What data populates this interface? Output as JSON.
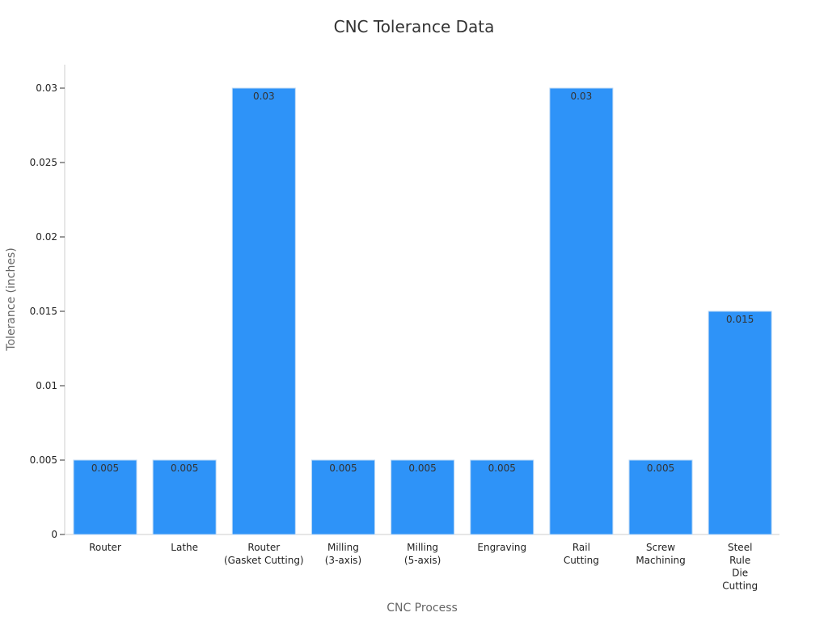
{
  "chart_data": {
    "type": "bar",
    "title": "CNC Tolerance Data",
    "xlabel": "CNC Process",
    "ylabel": "Tolerance (inches)",
    "categories": [
      "Router",
      "Lathe",
      "Router\n(Gasket Cutting)",
      "Milling\n(3-axis)",
      "Milling\n(5-axis)",
      "Engraving",
      "Rail\nCutting",
      "Screw\nMachining",
      "Steel\nRule\nDie\nCutting"
    ],
    "values": [
      0.005,
      0.005,
      0.03,
      0.005,
      0.005,
      0.005,
      0.03,
      0.005,
      0.015
    ],
    "data_labels": [
      "0.005",
      "0.005",
      "0.03",
      "0.005",
      "0.005",
      "0.005",
      "0.03",
      "0.005",
      "0.015"
    ],
    "ylim": [
      0,
      0.03
    ],
    "yticks": [
      0,
      0.005,
      0.01,
      0.015,
      0.02,
      0.025,
      0.03
    ],
    "ytick_labels": [
      "0",
      "0.005",
      "0.01",
      "0.015",
      "0.02",
      "0.025",
      "0.03"
    ],
    "grid": false,
    "legend": "none",
    "colors": {
      "bar": "#2e93f8",
      "bar_edge": "#b9d7f5"
    }
  }
}
